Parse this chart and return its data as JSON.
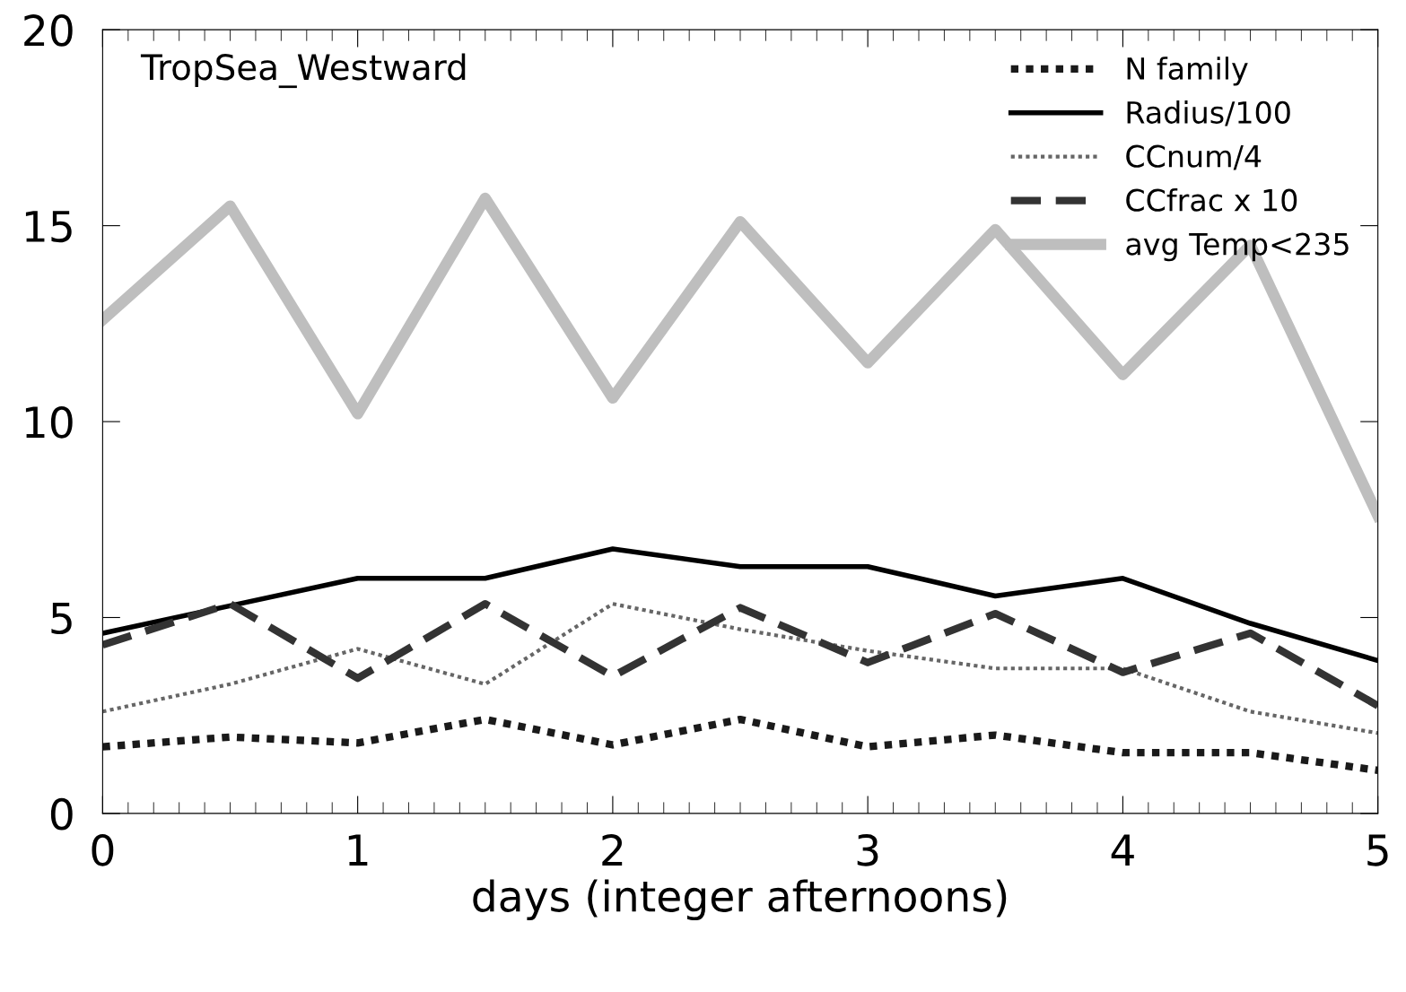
{
  "chart_data": {
    "type": "line",
    "annotations": [
      "TropSea_Westward"
    ],
    "xlabel": "days (integer afternoons)",
    "x": [
      0,
      0.5,
      1,
      1.5,
      2,
      2.5,
      3,
      3.5,
      4,
      4.5,
      5
    ],
    "xlim": [
      0,
      5
    ],
    "xticks": [
      0,
      1,
      2,
      3,
      4,
      5
    ],
    "ylim": [
      0,
      20
    ],
    "yticks": [
      0,
      5,
      10,
      15,
      20
    ],
    "grid": false,
    "legend": "top right",
    "marker": "none",
    "series": [
      {
        "name": "N family",
        "color": "#1a1a1a",
        "line_style": "dotted",
        "values": [
          1.7,
          1.95,
          1.8,
          2.4,
          1.75,
          2.4,
          1.7,
          2.0,
          1.55,
          1.55,
          1.1
        ]
      },
      {
        "name": "Radius/100",
        "color": "#000000",
        "line_style": "solid",
        "values": [
          4.6,
          5.3,
          6.0,
          6.0,
          6.75,
          6.3,
          6.3,
          5.55,
          6.0,
          4.85,
          3.9
        ]
      },
      {
        "name": "CCnum/4",
        "color": "#666666",
        "line_style": "dotted",
        "values": [
          2.6,
          3.3,
          4.2,
          3.3,
          5.35,
          4.7,
          4.15,
          3.7,
          3.7,
          2.6,
          2.05
        ]
      },
      {
        "name": "CCfrac x 10",
        "color": "#333333",
        "line_style": "dashed",
        "values": [
          4.3,
          5.35,
          3.45,
          5.35,
          3.5,
          5.25,
          3.85,
          5.1,
          3.6,
          4.6,
          2.75
        ]
      },
      {
        "name": "avg Temp<235",
        "color": "#bebebe",
        "line_style": "solid",
        "values": [
          12.6,
          15.5,
          10.2,
          15.7,
          10.6,
          15.1,
          11.5,
          14.9,
          11.2,
          14.5,
          7.6
        ]
      }
    ]
  }
}
